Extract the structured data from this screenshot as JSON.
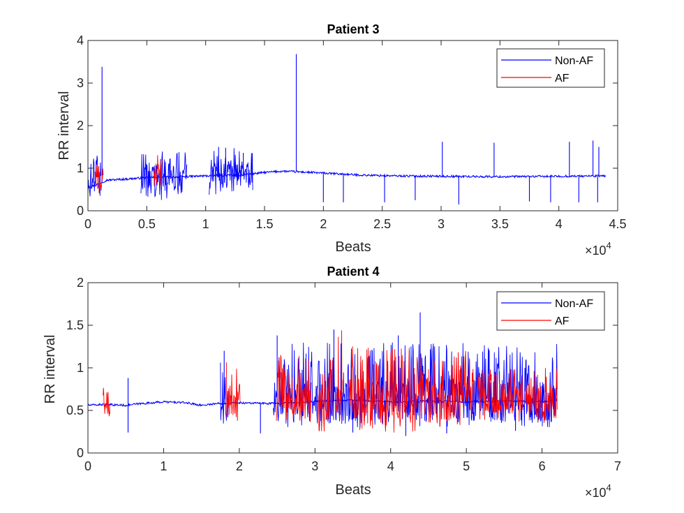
{
  "chart_data": [
    {
      "type": "line",
      "title": "Patient 3",
      "xlabel": "Beats",
      "ylabel": "RR interval",
      "xlim": [
        0,
        45000
      ],
      "ylim": [
        0,
        4
      ],
      "x_ticks": [
        0,
        5000,
        10000,
        15000,
        20000,
        25000,
        30000,
        35000,
        40000,
        45000
      ],
      "x_tick_labels": [
        "0",
        "0.5",
        "1",
        "1.5",
        "2",
        "2.5",
        "3",
        "3.5",
        "4",
        "4.5"
      ],
      "x_exponent": "×10",
      "x_exponent_power": "4",
      "y_ticks": [
        0,
        1,
        2,
        3,
        4
      ],
      "y_tick_labels": [
        "0",
        "1",
        "2",
        "3",
        "4"
      ],
      "grid": false,
      "legend": "top-right",
      "series": [
        {
          "name": "Non-AF",
          "color": "#0000ff",
          "baseline": [
            [
              0,
              0.55
            ],
            [
              800,
              0.62
            ],
            [
              1600,
              0.72
            ],
            [
              3000,
              0.74
            ],
            [
              5000,
              0.78
            ],
            [
              8000,
              0.8
            ],
            [
              10000,
              0.82
            ],
            [
              13000,
              0.84
            ],
            [
              15000,
              0.9
            ],
            [
              16500,
              0.93
            ],
            [
              17500,
              0.92
            ],
            [
              19000,
              0.9
            ],
            [
              21000,
              0.87
            ],
            [
              23000,
              0.84
            ],
            [
              26000,
              0.82
            ],
            [
              30000,
              0.81
            ],
            [
              35000,
              0.8
            ],
            [
              40000,
              0.81
            ],
            [
              44000,
              0.82
            ]
          ],
          "spikes": [
            [
              1200,
              3.38
            ],
            [
              17700,
              3.68
            ],
            [
              30100,
              1.62
            ],
            [
              34500,
              1.6
            ],
            [
              40900,
              1.62
            ],
            [
              42900,
              1.65
            ],
            [
              43400,
              1.5
            ],
            [
              11100,
              1.5
            ],
            [
              11700,
              1.48
            ],
            [
              13200,
              1.36
            ],
            [
              20000,
              0.2
            ],
            [
              21700,
              0.2
            ],
            [
              25200,
              0.2
            ],
            [
              27800,
              0.25
            ],
            [
              31500,
              0.15
            ],
            [
              37500,
              0.22
            ],
            [
              39300,
              0.2
            ],
            [
              41700,
              0.2
            ],
            [
              43300,
              0.2
            ]
          ],
          "noise_segments": [
            [
              0,
              1100,
              0.3,
              1.3
            ],
            [
              4500,
              8400,
              0.25,
              1.4
            ],
            [
              10300,
              14000,
              0.3,
              1.5
            ]
          ]
        },
        {
          "name": "AF",
          "color": "#ff0000",
          "noise_segments": [
            [
              600,
              1300,
              0.35,
              1.15
            ],
            [
              5600,
              6300,
              0.4,
              1.35
            ]
          ]
        }
      ]
    },
    {
      "type": "line",
      "title": "Patient 4",
      "xlabel": "Beats",
      "ylabel": "RR interval",
      "xlim": [
        0,
        70000
      ],
      "ylim": [
        0,
        2
      ],
      "x_ticks": [
        0,
        10000,
        20000,
        30000,
        40000,
        50000,
        60000,
        70000
      ],
      "x_tick_labels": [
        "0",
        "1",
        "2",
        "3",
        "4",
        "5",
        "6",
        "7"
      ],
      "x_exponent": "×10",
      "x_exponent_power": "4",
      "y_ticks": [
        0,
        0.5,
        1,
        1.5,
        2
      ],
      "y_tick_labels": [
        "0",
        "0.5",
        "1",
        "1.5",
        "2"
      ],
      "grid": false,
      "legend": "top-right",
      "series": [
        {
          "name": "Non-AF",
          "color": "#0000ff",
          "baseline": [
            [
              0,
              0.56
            ],
            [
              2000,
              0.57
            ],
            [
              5000,
              0.56
            ],
            [
              7000,
              0.58
            ],
            [
              10000,
              0.6
            ],
            [
              13000,
              0.59
            ],
            [
              15000,
              0.56
            ],
            [
              17000,
              0.58
            ],
            [
              20000,
              0.59
            ],
            [
              24000,
              0.58
            ],
            [
              28000,
              0.6
            ],
            [
              32000,
              0.61
            ],
            [
              35000,
              0.62
            ],
            [
              40000,
              0.6
            ],
            [
              45000,
              0.61
            ],
            [
              50000,
              0.6
            ],
            [
              55000,
              0.61
            ],
            [
              60000,
              0.6
            ],
            [
              62000,
              0.62
            ]
          ],
          "spikes": [
            [
              5300,
              0.88
            ],
            [
              5300,
              0.24
            ],
            [
              18000,
              1.2
            ],
            [
              25000,
              1.38
            ],
            [
              32500,
              1.45
            ],
            [
              41000,
              1.38
            ],
            [
              43900,
              1.65
            ],
            [
              48700,
              1.12
            ],
            [
              53000,
              1.2
            ],
            [
              22800,
              0.23
            ],
            [
              35000,
              0.24
            ],
            [
              47400,
              0.23
            ],
            [
              42000,
              0.2
            ],
            [
              56500,
              0.26
            ]
          ],
          "noise_segments": [
            [
              17500,
              18500,
              0.3,
              1.15
            ],
            [
              24500,
              62000,
              0.3,
              1.3
            ]
          ]
        },
        {
          "name": "AF",
          "color": "#ff0000",
          "noise_segments": [
            [
              2000,
              2900,
              0.34,
              0.98
            ],
            [
              18300,
              20100,
              0.36,
              1.1
            ],
            [
              24900,
              29500,
              0.27,
              1.2
            ],
            [
              30300,
              32300,
              0.25,
              1.1
            ],
            [
              32800,
              33600,
              0.3,
              1.45
            ],
            [
              34500,
              38000,
              0.25,
              1.3
            ],
            [
              38000,
              45000,
              0.2,
              1.25
            ],
            [
              45000,
              51000,
              0.28,
              1.2
            ],
            [
              51500,
              57500,
              0.36,
              1.0
            ],
            [
              57800,
              62000,
              0.35,
              1.0
            ]
          ]
        }
      ]
    }
  ]
}
